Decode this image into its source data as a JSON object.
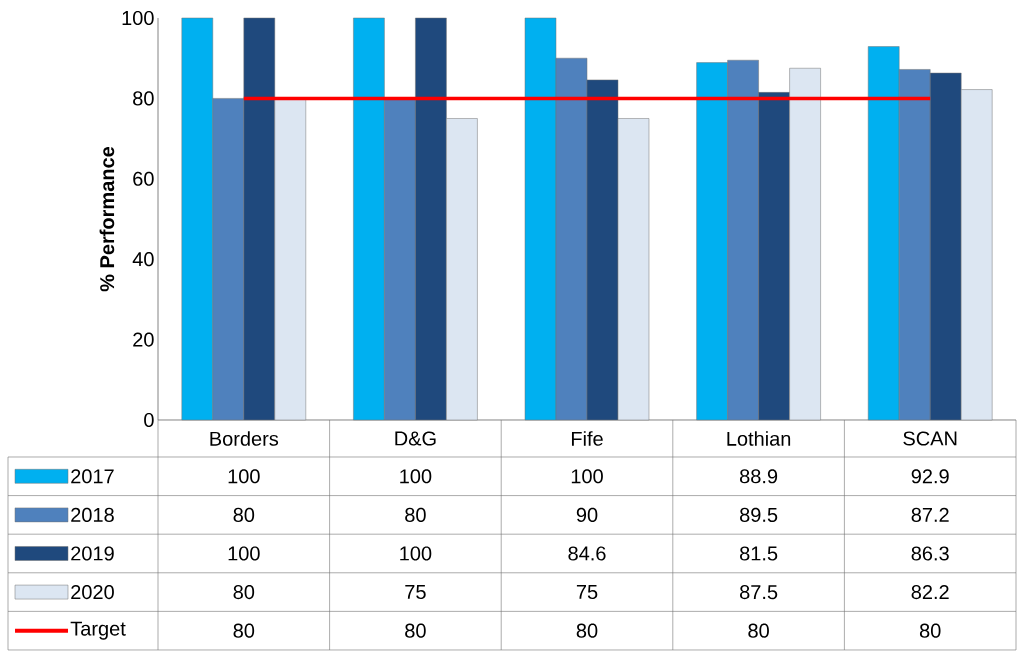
{
  "chart_data": {
    "type": "bar",
    "ylabel": "% Performance",
    "categories": [
      "Borders",
      "D&G",
      "Fife",
      "Lothian",
      "SCAN"
    ],
    "series": [
      {
        "name": "2017",
        "color": "#00b0f0",
        "values": [
          100,
          100,
          100,
          88.9,
          92.9
        ]
      },
      {
        "name": "2018",
        "color": "#4f81bd",
        "values": [
          80,
          80,
          90,
          89.5,
          87.2
        ]
      },
      {
        "name": "2019",
        "color": "#1f497d",
        "values": [
          100,
          100,
          84.6,
          81.5,
          86.3
        ]
      },
      {
        "name": "2020",
        "color": "#dce6f2",
        "values": [
          80,
          75,
          75,
          87.5,
          82.2
        ]
      },
      {
        "name": "Target",
        "type": "line",
        "color": "#ff0000",
        "values": [
          80,
          80,
          80,
          80,
          80
        ]
      }
    ],
    "ylim": [
      0,
      100
    ],
    "yticks": [
      0,
      20,
      40,
      60,
      80,
      100
    ],
    "data_labels": true,
    "legend": "bottom"
  }
}
